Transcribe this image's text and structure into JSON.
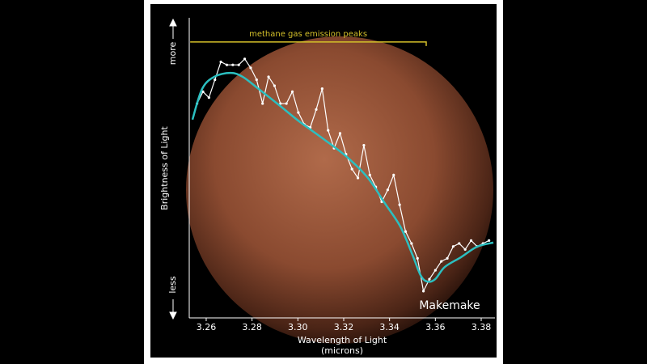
{
  "chart_data": {
    "type": "line",
    "x_label": "Wavelength of Light",
    "x_unit": "(microns)",
    "y_label": "Brightness of Light",
    "y_top_label": "more",
    "y_bottom_label": "less",
    "object_label": "Makemake",
    "annotation": {
      "text": "methane gas emission peaks",
      "x": [
        3.253,
        3.356
      ],
      "y": 92.7,
      "color": "#d4c02a"
    },
    "xlim": [
      3.2526,
      3.386
    ],
    "ylim": [
      0,
      100
    ],
    "xticks": [
      {
        "value": 3.26,
        "label": "3.26"
      },
      {
        "value": 3.28,
        "label": "3.28"
      },
      {
        "value": 3.3,
        "label": "3.30"
      },
      {
        "value": 3.32,
        "label": "3.32"
      },
      {
        "value": 3.34,
        "label": "3.34"
      },
      {
        "value": 3.36,
        "label": "3.36"
      },
      {
        "value": 3.38,
        "label": "3.38"
      }
    ],
    "series": [
      {
        "color": "#ffffff",
        "markers": true,
        "x": [
          3.256,
          3.2586,
          3.2612,
          3.2638,
          3.2664,
          3.269,
          3.2716,
          3.2742,
          3.2768,
          3.2794,
          3.282,
          3.2846,
          3.2872,
          3.2898,
          3.2924,
          3.295,
          3.2976,
          3.3002,
          3.3028,
          3.3054,
          3.308,
          3.3106,
          3.3132,
          3.3158,
          3.3184,
          3.321,
          3.3236,
          3.3262,
          3.3288,
          3.3314,
          3.334,
          3.3366,
          3.3392,
          3.3418,
          3.3444,
          3.347,
          3.3496,
          3.3522,
          3.3548,
          3.3574,
          3.36,
          3.3626,
          3.3652,
          3.3678,
          3.3704,
          3.373,
          3.3756,
          3.3782,
          3.3808,
          3.3834
        ],
        "values": [
          72,
          76,
          74,
          80,
          86,
          85,
          85,
          85,
          87,
          84,
          80,
          72,
          81,
          78,
          72,
          72,
          76,
          69,
          65,
          64,
          70,
          77,
          63,
          57,
          62,
          55,
          50,
          47,
          58,
          48,
          44,
          39,
          43,
          48,
          38,
          29,
          25,
          20,
          9,
          13,
          16,
          19,
          20,
          24,
          25,
          23,
          26,
          24,
          25,
          26
        ]
      },
      {
        "color": "#2bbfc0",
        "smooth": true,
        "x": [
          3.254,
          3.2582,
          3.2635,
          3.2706,
          3.2759,
          3.2829,
          3.2918,
          3.3006,
          3.3112,
          3.3218,
          3.3306,
          3.3376,
          3.3447,
          3.35,
          3.3535,
          3.3564,
          3.3599,
          3.3641,
          3.3712,
          3.3782,
          3.3853
        ],
        "values": [
          66.6,
          76.9,
          81,
          82.3,
          81,
          76.9,
          71.5,
          66,
          60.1,
          53.8,
          47,
          38.9,
          30.7,
          21.2,
          14.4,
          12.2,
          13,
          17.1,
          20.4,
          23.9,
          25.3
        ]
      }
    ]
  }
}
